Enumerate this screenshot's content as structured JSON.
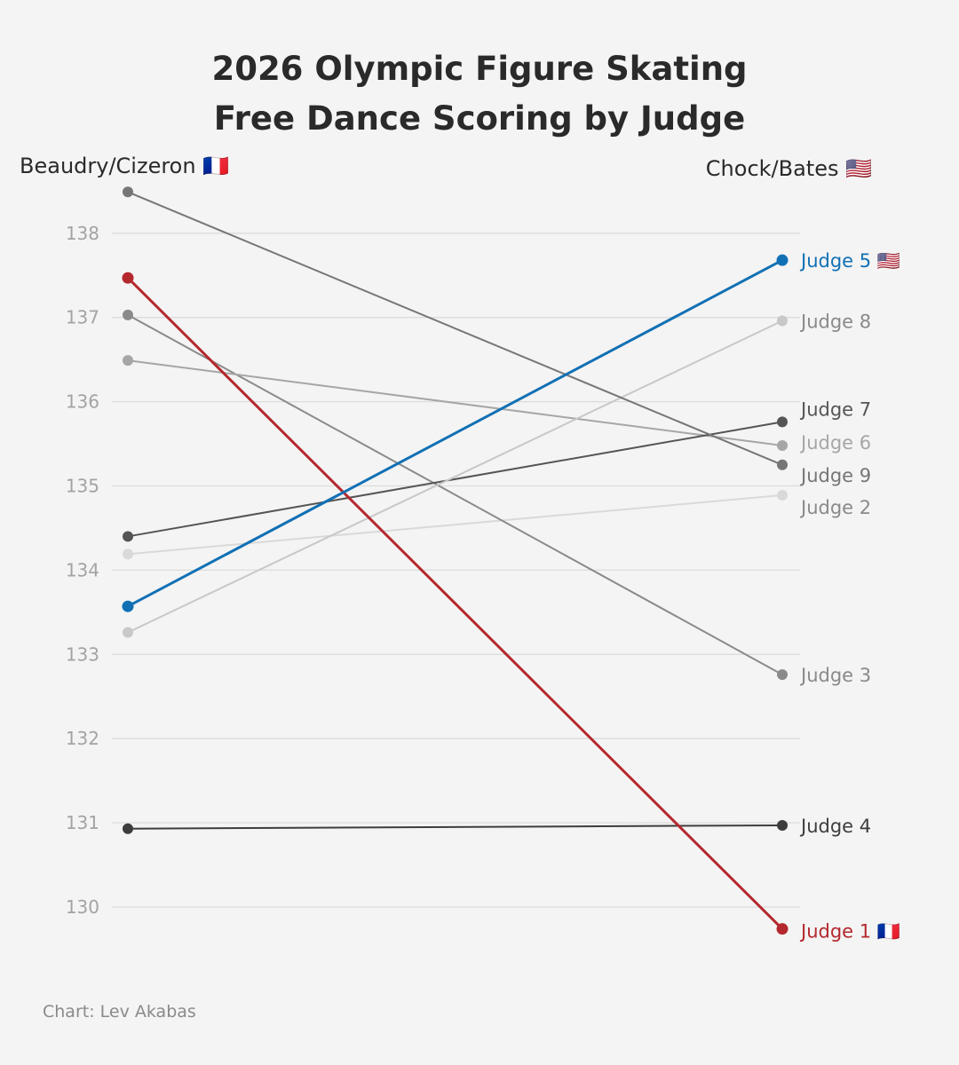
{
  "chart_data": {
    "type": "line",
    "title": [
      "2026 Olympic Figure Skating",
      "Free Dance Scoring by Judge"
    ],
    "x": [
      "Beaudry/Cizeron 🇫🇷",
      "Chock/Bates 🇺🇸"
    ],
    "xlabel": "",
    "ylabel": "",
    "ylim": [
      129.5,
      138.6
    ],
    "yticks": [
      130,
      131,
      132,
      133,
      134,
      135,
      136,
      137,
      138
    ],
    "grid": true,
    "series": [
      {
        "name": "Judge 1 🇫🇷",
        "values": [
          137.47,
          129.74
        ],
        "color": "#b4282d",
        "width": 3
      },
      {
        "name": "Judge 2",
        "values": [
          134.19,
          134.89
        ],
        "color": "#d9d9d9",
        "width": 2
      },
      {
        "name": "Judge 3",
        "values": [
          137.03,
          132.76
        ],
        "color": "#8a8a8a",
        "width": 2
      },
      {
        "name": "Judge 4",
        "values": [
          130.93,
          130.97
        ],
        "color": "#3d3d3d",
        "width": 2
      },
      {
        "name": "Judge 5 🇺🇸",
        "values": [
          133.57,
          137.68
        ],
        "color": "#1170b4",
        "width": 3
      },
      {
        "name": "Judge 6",
        "values": [
          136.49,
          135.48
        ],
        "color": "#a6a6a6",
        "width": 2
      },
      {
        "name": "Judge 7",
        "values": [
          134.4,
          135.76
        ],
        "color": "#555555",
        "width": 2
      },
      {
        "name": "Judge 8",
        "values": [
          133.26,
          136.96
        ],
        "color": "#c8c8c8",
        "width": 2
      },
      {
        "name": "Judge 9",
        "values": [
          138.49,
          135.25
        ],
        "color": "#767676",
        "width": 2
      }
    ],
    "label_color_overrides": {
      "Judge 2": "#8a8a8a",
      "Judge 8": "#8a8a8a"
    },
    "credit": "Chart: Lev Akabas"
  }
}
